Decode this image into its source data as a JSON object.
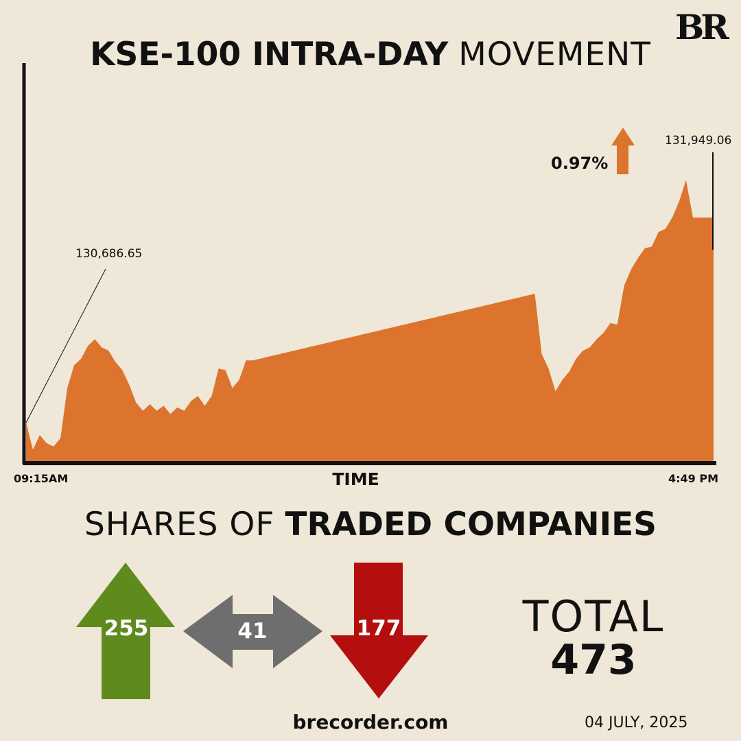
{
  "logo": "BR",
  "title_bold": "KSE-100 INTRA-DAY",
  "title_light": "MOVEMENT",
  "colors": {
    "background": "#efe7d7",
    "area": "#dc742d",
    "advance": "#5f8a1e",
    "unchanged": "#6e6e6e",
    "decline": "#b40e0e"
  },
  "chart_data": {
    "type": "area",
    "title": "KSE-100 INTRA-DAY MOVEMENT",
    "xlabel": "TIME",
    "x_start_label": "09:15AM",
    "x_end_label": "4:49 PM",
    "start_value_label": "130,686.65",
    "end_value_label": "131,949.06",
    "change_label": "0.97%",
    "change_direction": "up",
    "x": [
      0,
      1,
      2,
      3,
      4,
      5,
      6,
      7,
      8,
      9,
      10,
      11,
      12,
      13,
      14,
      15,
      16,
      17,
      18,
      19,
      20,
      21,
      22,
      23,
      24,
      25,
      26,
      27,
      28,
      29,
      30,
      31,
      32,
      33,
      34,
      35,
      36,
      37,
      38,
      39,
      40,
      41,
      42,
      43,
      44,
      45,
      46,
      47,
      48,
      49,
      50,
      51,
      52,
      53,
      54,
      55,
      56,
      57,
      58,
      59,
      60,
      61,
      62,
      63,
      64,
      65,
      66,
      67,
      68,
      69,
      70,
      71,
      72,
      73,
      74,
      75,
      76,
      77,
      78,
      79,
      80,
      81,
      82,
      83,
      84,
      85,
      86,
      87,
      88,
      89,
      90,
      91,
      92,
      93,
      94,
      95,
      96,
      97,
      98,
      99,
      100
    ],
    "values": [
      130686.65,
      130520,
      130610,
      130560,
      130540,
      130590,
      130900,
      131040,
      131080,
      131160,
      131200,
      131150,
      131130,
      131060,
      131010,
      130920,
      130810,
      130760,
      130800,
      130760,
      130790,
      130740,
      130780,
      130760,
      130820,
      130850,
      130790,
      130850,
      131020,
      131010,
      130900,
      130950,
      131070,
      131070,
      131080,
      131090,
      131100,
      131110,
      131120,
      131130,
      131140,
      131150,
      131160,
      131170,
      131180,
      131190,
      131200,
      131210,
      131220,
      131230,
      131240,
      131250,
      131260,
      131270,
      131280,
      131290,
      131300,
      131310,
      131320,
      131330,
      131340,
      131350,
      131360,
      131370,
      131380,
      131390,
      131400,
      131410,
      131420,
      131430,
      131440,
      131450,
      131460,
      131470,
      131480,
      131110,
      131020,
      130880,
      130950,
      131000,
      131080,
      131130,
      131150,
      131200,
      131240,
      131300,
      131290,
      131530,
      131630,
      131700,
      131760,
      131770,
      131860,
      131880,
      131950,
      132050,
      132180,
      131949.06,
      131949.06,
      131949.06,
      131949.06
    ],
    "ylim": [
      130450,
      132900
    ],
    "grid": false,
    "legend": "none"
  },
  "breadth": {
    "title_light": "SHARES OF",
    "title_bold": "TRADED COMPANIES",
    "advances": "255",
    "unchanged": "41",
    "declines": "177",
    "total_label": "TOTAL",
    "total_value": "473"
  },
  "footer": {
    "site": "brecorder.com",
    "date": "04 JULY, 2025"
  }
}
